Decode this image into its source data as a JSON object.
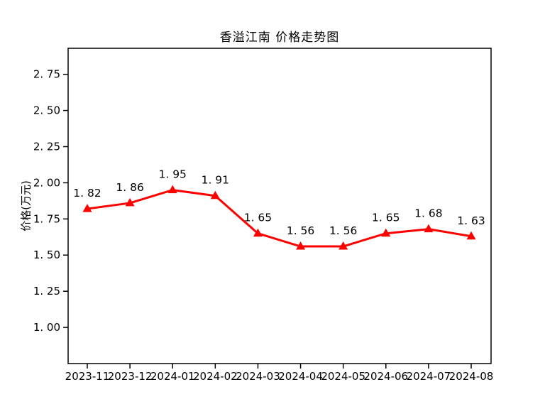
{
  "chart_data": {
    "type": "line",
    "title": "香溢江南 价格走势图",
    "xlabel": "",
    "ylabel": "价格(万元)",
    "categories": [
      "2023-11",
      "2023-12",
      "2024-01",
      "2024-02",
      "2024-03",
      "2024-04",
      "2024-05",
      "2024-06",
      "2024-07",
      "2024-08"
    ],
    "values": [
      1.82,
      1.86,
      1.95,
      1.91,
      1.65,
      1.56,
      1.56,
      1.65,
      1.68,
      1.63
    ],
    "point_labels": [
      "1. 82",
      "1. 86",
      "1. 95",
      "1. 91",
      "1. 65",
      "1. 56",
      "1. 56",
      "1. 65",
      "1. 68",
      "1. 63"
    ],
    "y_tick_values": [
      1.0,
      1.25,
      1.5,
      1.75,
      2.0,
      2.25,
      2.5,
      2.75
    ],
    "y_tick_labels": [
      "1. 00",
      "1. 25",
      "1. 50",
      "1. 75",
      "2. 00",
      "2. 25",
      "2. 50",
      "2. 75"
    ],
    "ylim": [
      0.75,
      2.93
    ],
    "grid": false,
    "legend": "none",
    "line_color": "#ff0000",
    "marker": "triangle-up",
    "marker_color": "#ff0000",
    "axis_color": "#000000",
    "text_color": "#000000",
    "background_color": "#ffffff"
  }
}
